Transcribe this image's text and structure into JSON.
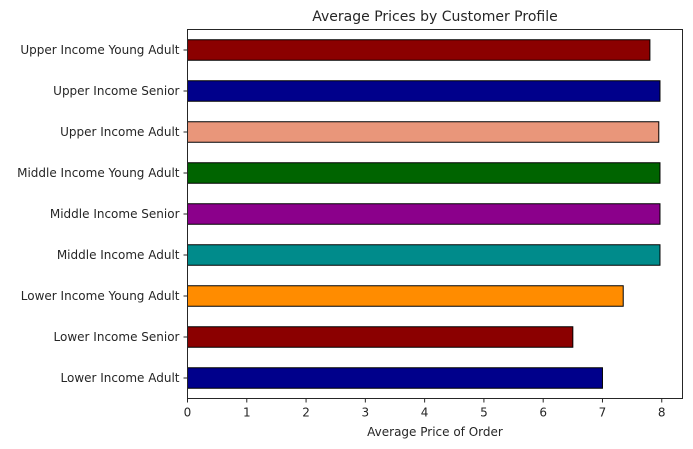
{
  "chart_data": {
    "type": "bar",
    "orientation": "horizontal",
    "title": "Average Prices by Customer Profile",
    "xlabel": "Average Price of Order",
    "ylabel": "",
    "xlim": [
      0,
      8.35
    ],
    "xticks": [
      0,
      1,
      2,
      3,
      4,
      5,
      6,
      7,
      8
    ],
    "grid": false,
    "legend": "none",
    "categories": [
      "Lower Income Adult",
      "Lower Income Senior",
      "Lower Income Young Adult",
      "Middle Income Adult",
      "Middle Income Senior",
      "Middle Income Young Adult",
      "Upper Income Adult",
      "Upper Income Senior",
      "Upper Income Young Adult"
    ],
    "values": [
      7.0,
      6.5,
      7.35,
      7.97,
      7.97,
      7.97,
      7.95,
      7.97,
      7.8
    ],
    "colors": [
      "#00008b",
      "#8b0000",
      "#ff8c00",
      "#008b8b",
      "#8b008b",
      "#006400",
      "#e9967a",
      "#00008b",
      "#8b0000"
    ],
    "edge_color": "#000000"
  }
}
